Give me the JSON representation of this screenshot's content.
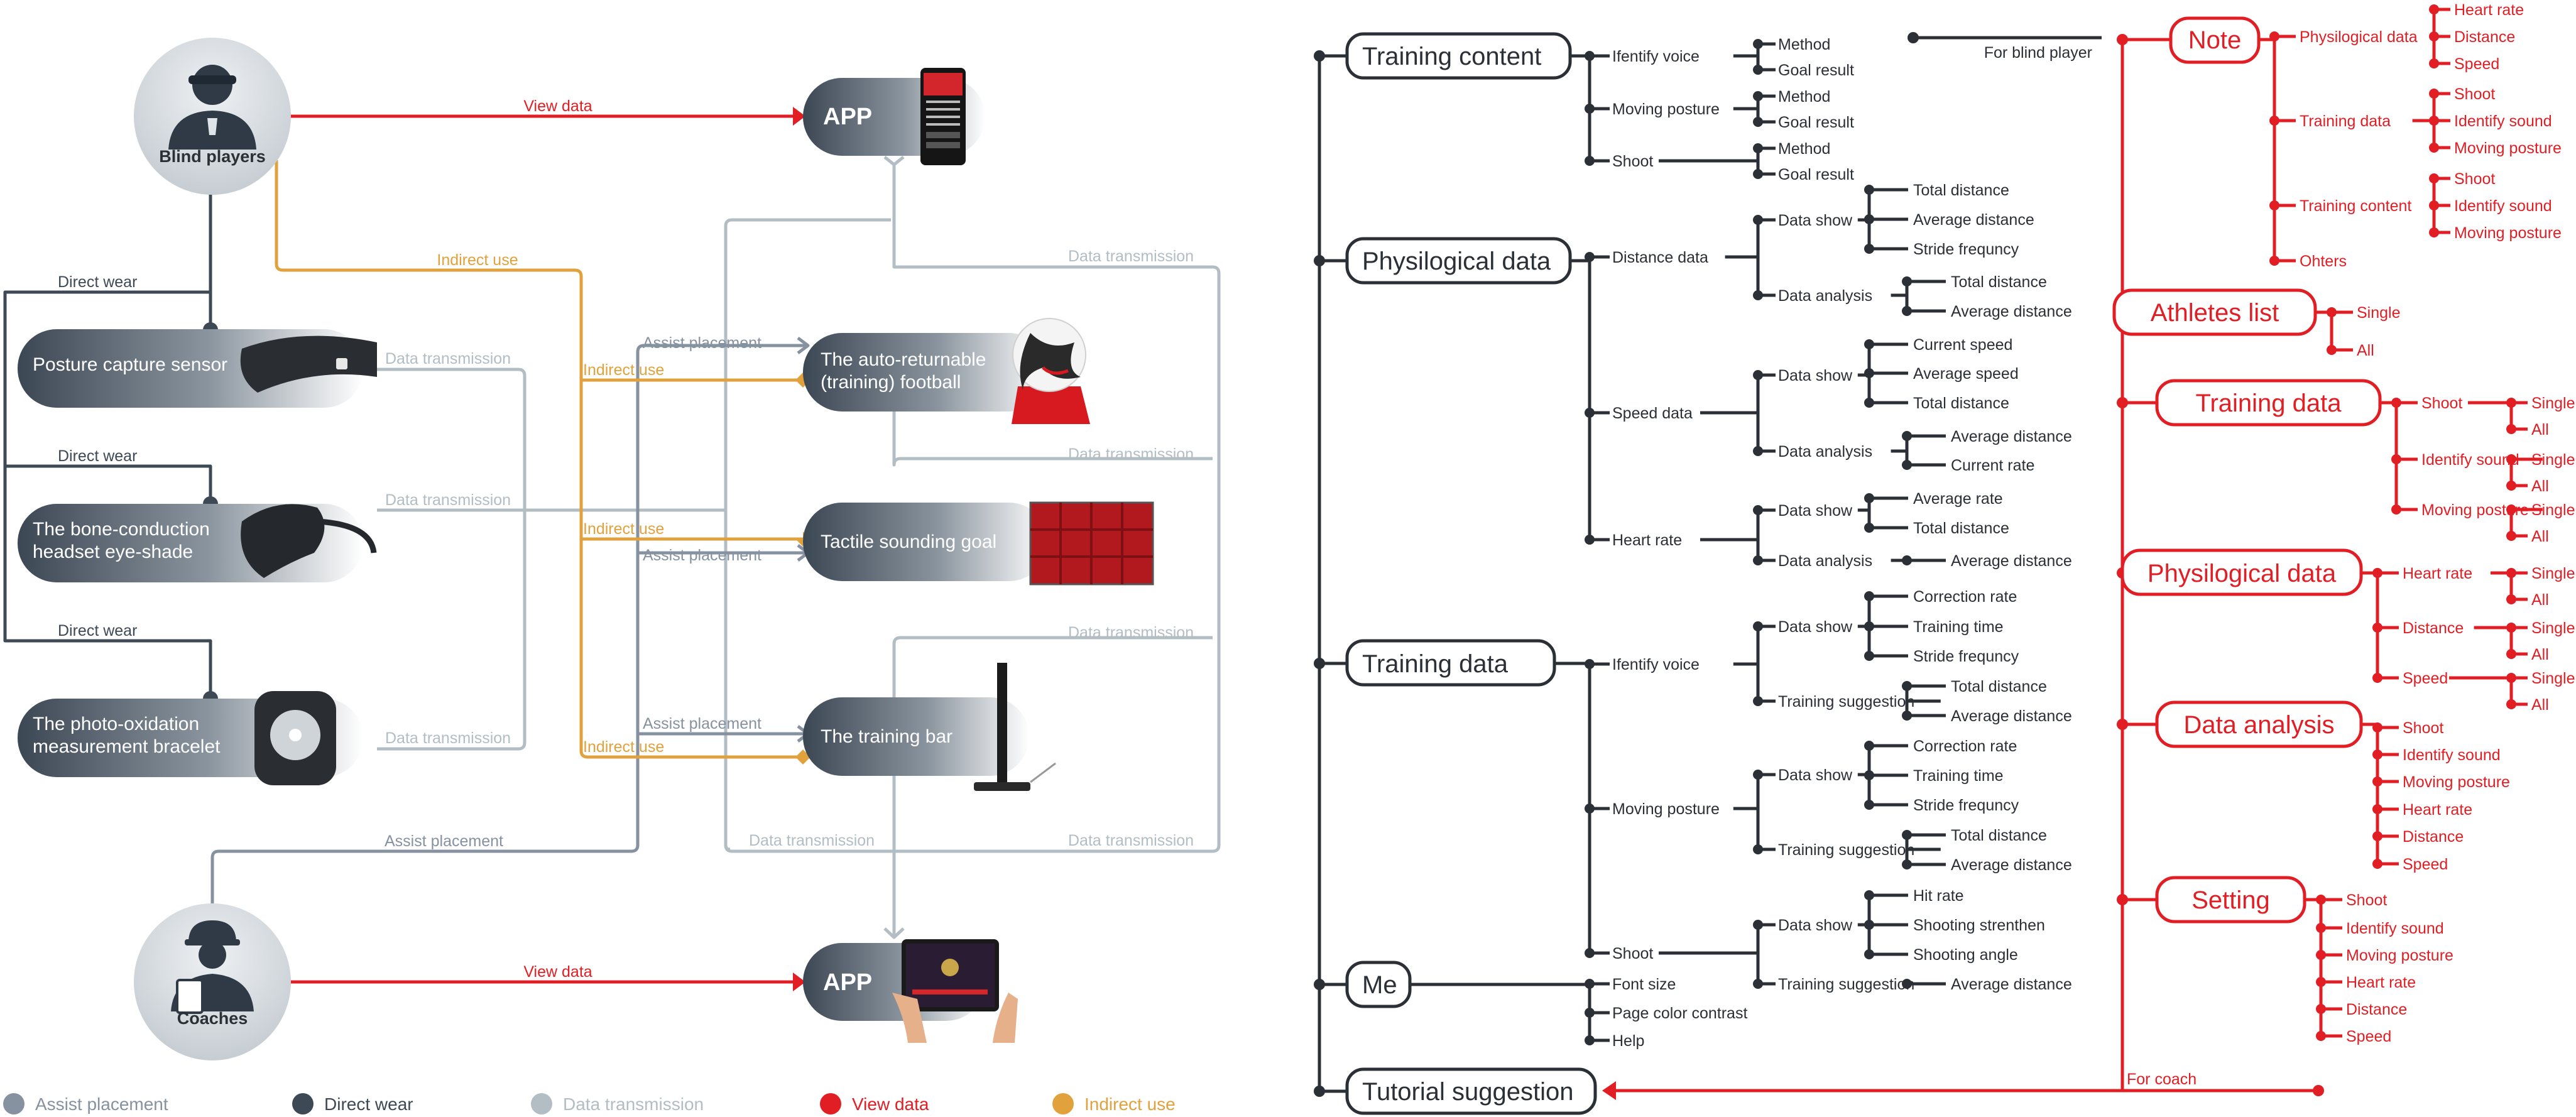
{
  "colors": {
    "assist": "#8792a0",
    "direct": "#3e4956",
    "data_tx": "#b2bdc4",
    "view": "#e21e25",
    "indirect": "#e1a23e",
    "text_dark": "#2b2f36",
    "red": "#e21e25"
  },
  "left": {
    "users": {
      "blind": "Blind players",
      "coaches": "Coaches"
    },
    "devices": {
      "posture": "Posture capture sensor",
      "bone": [
        "The bone-conduction",
        "headset eye-shade"
      ],
      "bracelet": [
        "The photo-oxidation",
        "measurement bracelet"
      ]
    },
    "equipment": {
      "app_top": "APP",
      "football": [
        "The auto-returnable",
        "(training) football"
      ],
      "goal": "Tactile sounding goal",
      "bar": "The training bar",
      "app_bottom": "APP"
    },
    "edge_labels": {
      "view_data": "View data",
      "indirect_use": "Indirect use",
      "direct_wear": "Direct wear",
      "data_transmission": "Data transmission",
      "assist_placement": "Assist placement"
    },
    "legend": [
      {
        "label": "Assist placement",
        "color": "#8792a0"
      },
      {
        "label": "Direct wear",
        "color": "#3e4956"
      },
      {
        "label": "Data transmission",
        "color": "#b2bdc4"
      },
      {
        "label": "View data",
        "color": "#e21e25"
      },
      {
        "label": "Indirect use",
        "color": "#e1a23e"
      }
    ]
  },
  "tree_blind": {
    "for_label": "For blind player",
    "sections": [
      {
        "title": "Training content",
        "children": [
          {
            "label": "Ifentify voice",
            "children": [
              {
                "label": "Method"
              },
              {
                "label": "Goal result"
              }
            ]
          },
          {
            "label": "Moving posture",
            "children": [
              {
                "label": "Method"
              },
              {
                "label": "Goal result"
              }
            ]
          },
          {
            "label": "Shoot",
            "children": [
              {
                "label": "Method"
              },
              {
                "label": "Goal result"
              }
            ]
          }
        ]
      },
      {
        "title": "Physilogical data",
        "children": [
          {
            "label": "Distance data",
            "children": [
              {
                "label": "Data show",
                "children": [
                  {
                    "label": "Total distance"
                  },
                  {
                    "label": "Average distance"
                  },
                  {
                    "label": "Stride frequncy"
                  }
                ]
              },
              {
                "label": "Data analysis",
                "children": [
                  {
                    "label": "Total distance"
                  },
                  {
                    "label": "Average distance"
                  }
                ]
              }
            ]
          },
          {
            "label": "Speed data",
            "children": [
              {
                "label": "Data show",
                "children": [
                  {
                    "label": "Current speed"
                  },
                  {
                    "label": "Average speed"
                  },
                  {
                    "label": "Total distance"
                  }
                ]
              },
              {
                "label": "Data analysis",
                "children": [
                  {
                    "label": "Average distance"
                  },
                  {
                    "label": "Current rate"
                  }
                ]
              }
            ]
          },
          {
            "label": "Heart rate",
            "children": [
              {
                "label": "Data show",
                "children": [
                  {
                    "label": "Average rate"
                  },
                  {
                    "label": "Total distance"
                  }
                ]
              },
              {
                "label": "Data analysis",
                "children": [
                  {
                    "label": "Average distance"
                  }
                ]
              }
            ]
          }
        ]
      },
      {
        "title": "Training data",
        "children": [
          {
            "label": "Ifentify voice",
            "children": [
              {
                "label": "Data show",
                "children": [
                  {
                    "label": "Correction rate"
                  },
                  {
                    "label": "Training time"
                  },
                  {
                    "label": "Stride frequncy"
                  }
                ]
              },
              {
                "label": "Training suggestion",
                "children": [
                  {
                    "label": "Total distance"
                  },
                  {
                    "label": "Average distance"
                  }
                ]
              }
            ]
          },
          {
            "label": "Moving posture",
            "children": [
              {
                "label": "Data show",
                "children": [
                  {
                    "label": "Correction rate"
                  },
                  {
                    "label": "Training time"
                  },
                  {
                    "label": "Stride frequncy"
                  }
                ]
              },
              {
                "label": "Training suggestion",
                "children": [
                  {
                    "label": "Total distance"
                  },
                  {
                    "label": "Average distance"
                  }
                ]
              }
            ]
          },
          {
            "label": "Shoot",
            "children": [
              {
                "label": "Data show",
                "children": [
                  {
                    "label": "Hit rate"
                  },
                  {
                    "label": "Shooting strenthen"
                  },
                  {
                    "label": "Shooting angle"
                  }
                ]
              },
              {
                "label": "Training suggestion",
                "children": [
                  {
                    "label": "Average distance"
                  }
                ]
              }
            ]
          }
        ]
      },
      {
        "title": "Me",
        "children": [
          {
            "label": "Font size"
          },
          {
            "label": "Page color contrast"
          },
          {
            "label": "Help"
          }
        ]
      },
      {
        "title": "Tutorial suggestion",
        "children": []
      }
    ]
  },
  "tree_coach": {
    "for_label": "For coach",
    "sections": [
      {
        "title": "Note",
        "children": [
          {
            "label": "Physilogical data",
            "children": [
              {
                "label": "Heart rate"
              },
              {
                "label": "Distance"
              },
              {
                "label": "Speed"
              }
            ]
          },
          {
            "label": "Training data",
            "children": [
              {
                "label": "Shoot"
              },
              {
                "label": "Identify sound"
              },
              {
                "label": "Moving posture"
              }
            ]
          },
          {
            "label": "Training content",
            "children": [
              {
                "label": "Shoot"
              },
              {
                "label": "Identify sound"
              },
              {
                "label": "Moving posture"
              }
            ]
          },
          {
            "label": "Ohters",
            "children": []
          }
        ]
      },
      {
        "title": "Athletes list",
        "children": [
          {
            "label": "Single"
          },
          {
            "label": "All"
          }
        ]
      },
      {
        "title": "Training data",
        "children": [
          {
            "label": "Shoot",
            "children": [
              {
                "label": "Single"
              },
              {
                "label": "All"
              }
            ]
          },
          {
            "label": "Identify sound",
            "children": [
              {
                "label": "Single"
              },
              {
                "label": "All"
              }
            ]
          },
          {
            "label": "Moving posture",
            "children": [
              {
                "label": "Single"
              },
              {
                "label": "All"
              }
            ]
          }
        ]
      },
      {
        "title": "Physilogical data",
        "children": [
          {
            "label": "Heart rate",
            "children": [
              {
                "label": "Single"
              },
              {
                "label": "All"
              }
            ]
          },
          {
            "label": "Distance",
            "children": [
              {
                "label": "Single"
              },
              {
                "label": "All"
              }
            ]
          },
          {
            "label": "Speed",
            "children": [
              {
                "label": "Single"
              },
              {
                "label": "All"
              }
            ]
          }
        ]
      },
      {
        "title": "Data analysis",
        "children": [
          {
            "label": "Shoot"
          },
          {
            "label": "Identify sound"
          },
          {
            "label": "Moving posture"
          },
          {
            "label": "Heart rate"
          },
          {
            "label": "Distance"
          },
          {
            "label": "Speed"
          }
        ]
      },
      {
        "title": "Setting",
        "children": [
          {
            "label": "Shoot"
          },
          {
            "label": "Identify sound"
          },
          {
            "label": "Moving posture"
          },
          {
            "label": "Heart rate"
          },
          {
            "label": "Distance"
          },
          {
            "label": "Speed"
          }
        ]
      }
    ]
  }
}
